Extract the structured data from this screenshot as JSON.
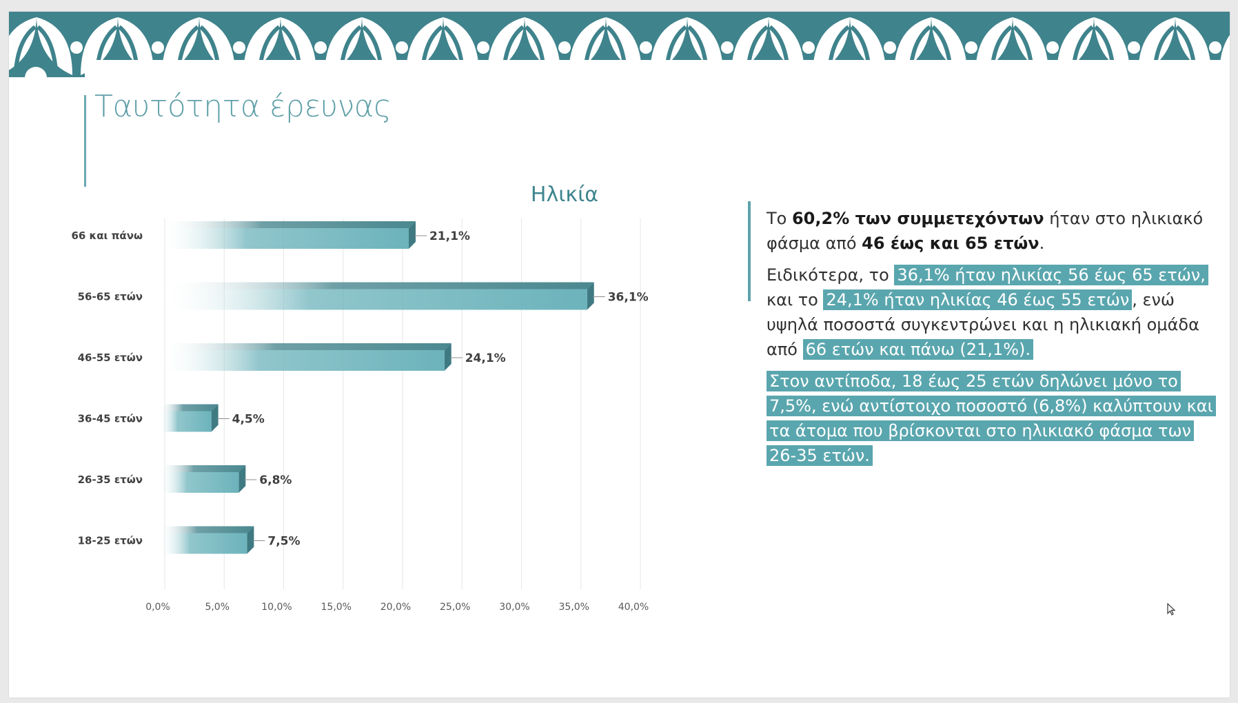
{
  "slide": {
    "title": "Ταυτότητα έρευνας"
  },
  "chart_data": {
    "type": "bar",
    "orientation": "horizontal",
    "title": "Ηλικία",
    "categories": [
      "66 και πάνω",
      "56-65 ετών",
      "46-55 ετών",
      "36-45 ετών",
      "26-35 ετών",
      "18-25 ετών"
    ],
    "values": [
      21.1,
      36.1,
      24.1,
      4.5,
      6.8,
      7.5
    ],
    "value_labels": [
      "21,1%",
      "36,1%",
      "24,1%",
      "4,5%",
      "6,8%",
      "7,5%"
    ],
    "xlim": [
      0,
      40
    ],
    "x_ticks": [
      "0,0%",
      "5,0%",
      "10,0%",
      "15,0%",
      "20,0%",
      "25,0%",
      "30,0%",
      "35,0%",
      "40,0%"
    ],
    "xlabel": "",
    "ylabel": "",
    "grid": true,
    "colors": {
      "bar": "#6cb3bb",
      "bar_top": "#4a8890",
      "bar_side": "#3f7a82",
      "title": "#3e858f"
    }
  },
  "summary": {
    "p1": {
      "t1": "Το ",
      "b1": "60,2% των συμμετεχόντων",
      "t2": " ήταν στο ηλικιακό φάσμα από ",
      "b2": "46 έως και 65 ετών",
      "t3": "."
    },
    "p2": {
      "t1": "Ειδικότερα, το ",
      "h1": "36,1% ήταν ηλικίας 56 έως 65 ετών,",
      "t2": " και το ",
      "h2": "24,1% ήταν ηλικίας 46 έως 55 ετών",
      "t3": ", ενώ υψηλά ποσοστά συγκεντρώνει και η ηλικιακή ομάδα από ",
      "h3": "66 ετών και πάνω (21,1%)."
    },
    "p3": {
      "h1": "Στον αντίποδα, 18 έως 25 ετών δηλώνει μόνο το 7,5%, ενώ αντίστοιχο ποσοστό (6,8%) καλύπτουν και τα άτομα που βρίσκονται στο ηλικιακό φάσμα των 26-35 ετών."
    }
  },
  "colors": {
    "banner": "#3f838c",
    "accent": "#5ea2ab",
    "highlight": "#5aa6ae"
  }
}
